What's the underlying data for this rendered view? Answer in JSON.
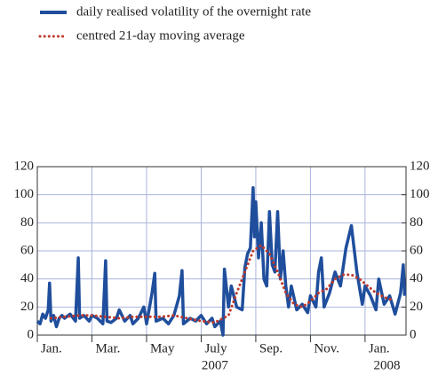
{
  "chart_data": {
    "type": "line",
    "series": [
      {
        "name": "daily realised volatility of the overnight rate",
        "color": "#1f4e9c",
        "style": "solid",
        "x": [
          0,
          0.1,
          0.2,
          0.3,
          0.4,
          0.45,
          0.5,
          0.6,
          0.7,
          0.8,
          0.9,
          1.0,
          1.2,
          1.4,
          1.5,
          1.55,
          1.7,
          1.9,
          2.0,
          2.2,
          2.4,
          2.5,
          2.55,
          2.7,
          2.9,
          3.0,
          3.2,
          3.4,
          3.5,
          3.7,
          3.9,
          4.0,
          4.2,
          4.3,
          4.35,
          4.6,
          4.8,
          5.0,
          5.2,
          5.3,
          5.35,
          5.6,
          5.8,
          6.0,
          6.2,
          6.4,
          6.5,
          6.7,
          6.8,
          6.85,
          7.0,
          7.1,
          7.3,
          7.5,
          7.6,
          7.7,
          7.8,
          7.9,
          7.95,
          8.0,
          8.1,
          8.2,
          8.3,
          8.4,
          8.5,
          8.6,
          8.7,
          8.8,
          8.9,
          9.0,
          9.1,
          9.2,
          9.3,
          9.5,
          9.7,
          9.9,
          10.0,
          10.2,
          10.3,
          10.4,
          10.5,
          10.7,
          10.9,
          11.1,
          11.3,
          11.5,
          11.7,
          11.9,
          12.0,
          12.2,
          12.4,
          12.5,
          12.7,
          12.9,
          13.1,
          13.3,
          13.4,
          13.45
        ],
        "values": [
          10,
          8,
          15,
          12,
          18,
          37,
          10,
          14,
          6,
          12,
          14,
          12,
          15,
          10,
          55,
          12,
          14,
          10,
          14,
          12,
          8,
          53,
          10,
          9,
          12,
          18,
          10,
          14,
          8,
          12,
          20,
          8,
          30,
          44,
          10,
          12,
          8,
          14,
          28,
          46,
          8,
          12,
          10,
          14,
          8,
          12,
          6,
          10,
          0,
          47,
          20,
          35,
          20,
          18,
          48,
          58,
          62,
          105,
          70,
          95,
          55,
          80,
          40,
          35,
          88,
          50,
          45,
          88,
          40,
          60,
          35,
          20,
          35,
          18,
          22,
          16,
          28,
          20,
          45,
          55,
          20,
          30,
          45,
          35,
          62,
          78,
          45,
          22,
          35,
          28,
          18,
          40,
          22,
          28,
          15,
          30,
          50,
          28
        ]
      },
      {
        "name": "centred 21-day moving average",
        "color": "#c0392b",
        "style": "dotted",
        "x": [
          0.5,
          1,
          1.5,
          2,
          2.5,
          3,
          3.5,
          4,
          4.5,
          5,
          5.5,
          6,
          6.5,
          7,
          7.3,
          7.6,
          7.9,
          8.2,
          8.5,
          8.8,
          9.1,
          9.4,
          9.7,
          10,
          10.3,
          10.6,
          10.9,
          11.2,
          11.5,
          11.8,
          12.1,
          12.4,
          12.7,
          13
        ],
        "values": [
          12,
          13,
          14,
          14,
          13,
          12,
          13,
          13,
          13,
          14,
          12,
          10,
          9,
          14,
          30,
          45,
          60,
          64,
          58,
          45,
          30,
          22,
          20,
          24,
          30,
          33,
          40,
          43,
          43,
          40,
          35,
          30,
          27,
          25
        ]
      }
    ],
    "xlim": [
      0,
      13.5
    ],
    "xticks": [
      {
        "value": 0,
        "label": "Jan."
      },
      {
        "value": 2,
        "label": "Mar."
      },
      {
        "value": 4,
        "label": "May"
      },
      {
        "value": 6,
        "label": "July"
      },
      {
        "value": 8,
        "label": "Sep."
      },
      {
        "value": 10,
        "label": "Nov."
      },
      {
        "value": 12,
        "label": "Jan."
      }
    ],
    "year_labels": [
      "2007",
      "2008"
    ],
    "ylim": [
      0,
      120
    ],
    "yticks": [
      0,
      20,
      40,
      60,
      80,
      100,
      120
    ],
    "y2lim": [
      0,
      120
    ],
    "y2ticks": [
      0,
      20,
      40,
      60,
      80,
      100,
      120
    ],
    "grid": true
  }
}
